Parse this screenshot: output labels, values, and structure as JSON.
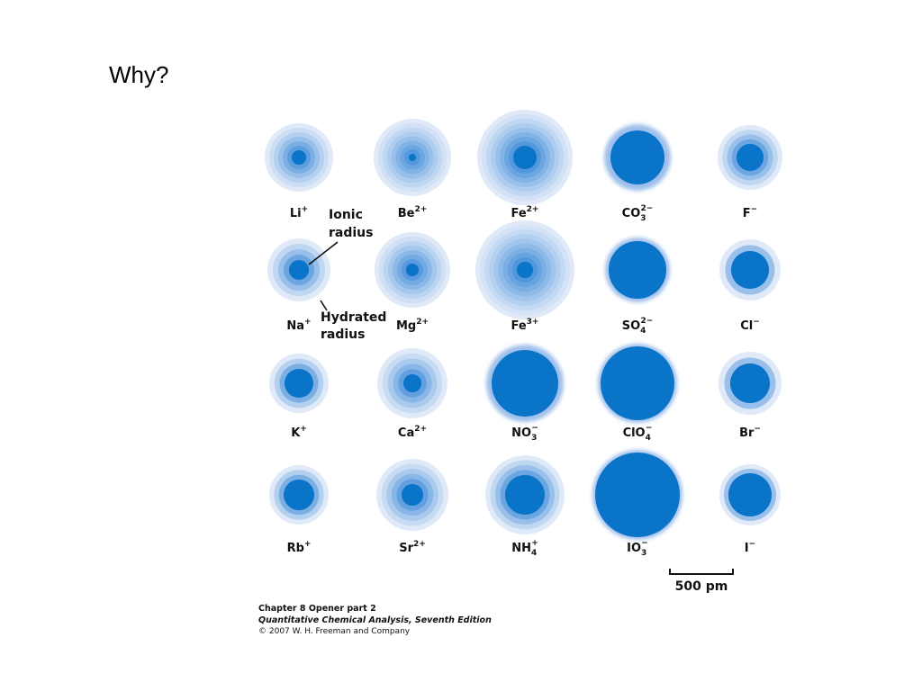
{
  "slide": {
    "title": "Why?"
  },
  "colors": {
    "ion": "#0a74c8",
    "hydration_light": "#dfe9f8",
    "hydration_mid": "#9fc0ec"
  },
  "figure": {
    "annotations": {
      "ionic_line1": "Ionic",
      "ionic_line2": "radius",
      "hydrated_line1": "Hydrated",
      "hydrated_line2": "radius"
    },
    "scale_bar": {
      "label": "500 pm",
      "length_pm": 500
    },
    "rows": [
      [
        {
          "base": "Li",
          "sup": "+",
          "sub": ""
        },
        {
          "base": "Be",
          "sup": "2+",
          "sub": ""
        },
        {
          "base": "Fe",
          "sup": "2+",
          "sub": ""
        },
        {
          "base": "CO",
          "sup": "2−",
          "sub": "3"
        },
        {
          "base": "F",
          "sup": "−",
          "sub": ""
        }
      ],
      [
        {
          "base": "Na",
          "sup": "+",
          "sub": ""
        },
        {
          "base": "Mg",
          "sup": "2+",
          "sub": ""
        },
        {
          "base": "Fe",
          "sup": "3+",
          "sub": ""
        },
        {
          "base": "SO",
          "sup": "2−",
          "sub": "4"
        },
        {
          "base": "Cl",
          "sup": "−",
          "sub": ""
        }
      ],
      [
        {
          "base": "K",
          "sup": "+",
          "sub": ""
        },
        {
          "base": "Ca",
          "sup": "2+",
          "sub": ""
        },
        {
          "base": "NO",
          "sup": "−",
          "sub": "3"
        },
        {
          "base": "ClO",
          "sup": "−",
          "sub": "4"
        },
        {
          "base": "Br",
          "sup": "−",
          "sub": ""
        }
      ],
      [
        {
          "base": "Rb",
          "sup": "+",
          "sub": ""
        },
        {
          "base": "Sr",
          "sup": "2+",
          "sub": ""
        },
        {
          "base": "NH",
          "sup": "+",
          "sub": "4"
        },
        {
          "base": "IO",
          "sup": "−",
          "sub": "3"
        },
        {
          "base": "I",
          "sup": "−",
          "sub": ""
        }
      ]
    ]
  },
  "caption": {
    "line1": "Chapter 8 Opener part 2",
    "line2": "Quantitative Chemical Analysis, Seventh Edition",
    "line3": "© 2007 W. H. Freeman and Company"
  }
}
